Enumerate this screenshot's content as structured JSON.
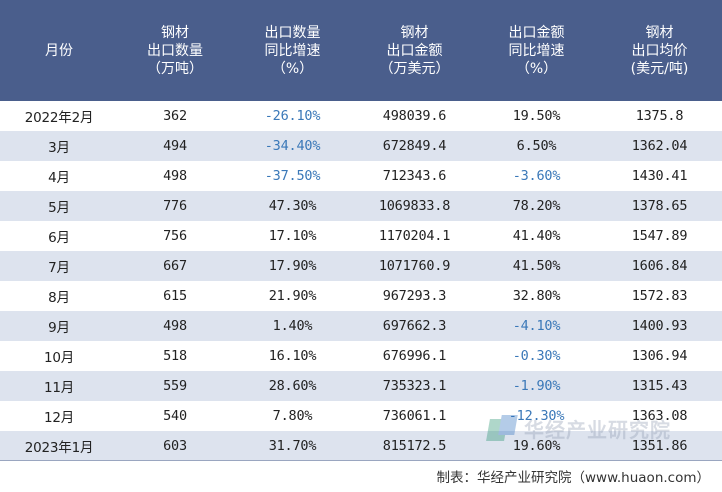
{
  "header": {
    "cols": [
      "月份",
      "钢材\n出口数量\n（万吨）",
      "出口数量\n同比增速\n（%）",
      "钢材\n出口金额\n（万美元）",
      "出口金额\n同比增速\n（%）",
      "钢材\n出口均价\n(美元/吨)"
    ]
  },
  "rows": [
    {
      "month": "2022年2月",
      "qty": "362",
      "qty_yoy": "-26.10%",
      "amount": "498039.6",
      "amount_yoy": "19.50%",
      "price": "1375.8"
    },
    {
      "month": "3月",
      "qty": "494",
      "qty_yoy": "-34.40%",
      "amount": "672849.4",
      "amount_yoy": "6.50%",
      "price": "1362.04"
    },
    {
      "month": "4月",
      "qty": "498",
      "qty_yoy": "-37.50%",
      "amount": "712343.6",
      "amount_yoy": "-3.60%",
      "price": "1430.41"
    },
    {
      "month": "5月",
      "qty": "776",
      "qty_yoy": "47.30%",
      "amount": "1069833.8",
      "amount_yoy": "78.20%",
      "price": "1378.65"
    },
    {
      "month": "6月",
      "qty": "756",
      "qty_yoy": "17.10%",
      "amount": "1170204.1",
      "amount_yoy": "41.40%",
      "price": "1547.89"
    },
    {
      "month": "7月",
      "qty": "667",
      "qty_yoy": "17.90%",
      "amount": "1071760.9",
      "amount_yoy": "41.50%",
      "price": "1606.84"
    },
    {
      "month": "8月",
      "qty": "615",
      "qty_yoy": "21.90%",
      "amount": "967293.3",
      "amount_yoy": "32.80%",
      "price": "1572.83"
    },
    {
      "month": "9月",
      "qty": "498",
      "qty_yoy": "1.40%",
      "amount": "697662.3",
      "amount_yoy": "-4.10%",
      "price": "1400.93"
    },
    {
      "month": "10月",
      "qty": "518",
      "qty_yoy": "16.10%",
      "amount": "676996.1",
      "amount_yoy": "-0.30%",
      "price": "1306.94"
    },
    {
      "month": "11月",
      "qty": "559",
      "qty_yoy": "28.60%",
      "amount": "735323.1",
      "amount_yoy": "-1.90%",
      "price": "1315.43"
    },
    {
      "month": "12月",
      "qty": "540",
      "qty_yoy": "7.80%",
      "amount": "736061.1",
      "amount_yoy": "-12.30%",
      "price": "1363.08"
    },
    {
      "month": "2023年1月",
      "qty": "603",
      "qty_yoy": "31.70%",
      "amount": "815172.5",
      "amount_yoy": "19.60%",
      "price": "1351.86"
    }
  ],
  "watermark": "华经产业研究院",
  "footer": "制表：华经产业研究院（www.huaon.com）",
  "colors": {
    "header_bg": "#4a5e8c",
    "stripe": "#dde3ee",
    "negative": "#3a78b8"
  }
}
